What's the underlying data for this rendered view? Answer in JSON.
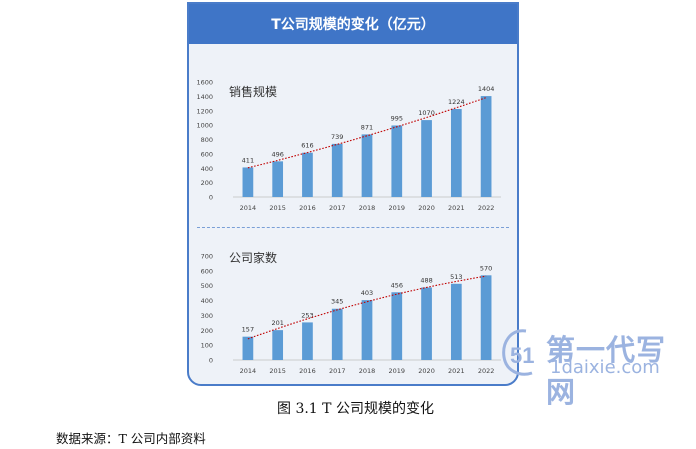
{
  "figure": {
    "header_title": "T公司规模的变化（亿元）",
    "caption": "图 3.1  T 公司规模的变化",
    "source": "数据来源：T 公司内部资料"
  },
  "watermark": {
    "main": "第一代写网",
    "sub": "1daixie.com",
    "logo_glyph": "51",
    "color": "#9bb3e0"
  },
  "colors": {
    "bar": "#5b9bd5",
    "trend": "#c00000",
    "header": "#3f75c7"
  },
  "chart_data": [
    {
      "type": "bar",
      "title": "销售规模",
      "categories": [
        "2014",
        "2015",
        "2016",
        "2017",
        "2018",
        "2019",
        "2020",
        "2021",
        "2022"
      ],
      "values": [
        411,
        496,
        616,
        739,
        871,
        995,
        1070,
        1224,
        1404
      ],
      "ylim": [
        0,
        1600
      ],
      "yticks": [
        0,
        200,
        400,
        600,
        800,
        1000,
        1200,
        1400,
        1600
      ],
      "trendline": "polynomial",
      "grid": false
    },
    {
      "type": "bar",
      "title": "公司家数",
      "categories": [
        "2014",
        "2015",
        "2016",
        "2017",
        "2018",
        "2019",
        "2020",
        "2021",
        "2022"
      ],
      "values": [
        157,
        201,
        253,
        345,
        403,
        456,
        488,
        513,
        570
      ],
      "ylim": [
        0,
        700
      ],
      "yticks": [
        0,
        100,
        200,
        300,
        400,
        500,
        600,
        700
      ],
      "trendline": "polynomial",
      "grid": false
    }
  ]
}
